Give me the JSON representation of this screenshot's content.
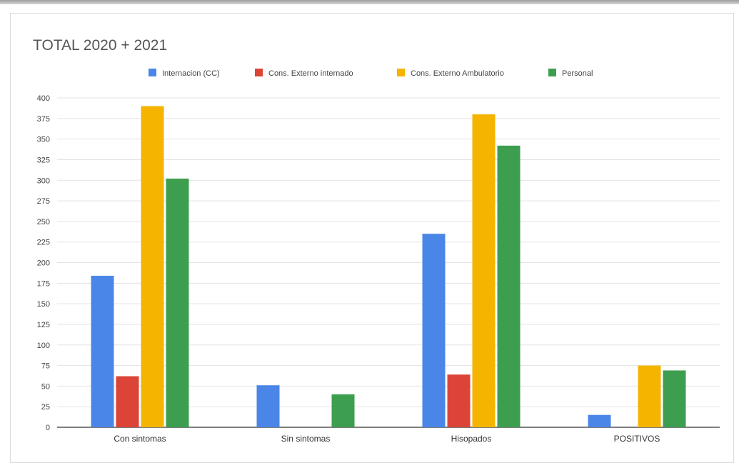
{
  "chart_data": {
    "type": "bar",
    "title": "TOTAL 2020 + 2021",
    "xlabel": "",
    "ylabel": "",
    "categories": [
      "Con sintomas",
      "Sin sintomas",
      "Hisopados",
      "POSITIVOS"
    ],
    "series": [
      {
        "name": "Internacion (CC)",
        "color": "#4a86e8",
        "values": [
          184,
          51,
          235,
          15
        ]
      },
      {
        "name": "Cons. Externo internado",
        "color": "#db4437",
        "values": [
          62,
          0,
          64,
          0
        ]
      },
      {
        "name": "Cons. Externo Ambulatorio",
        "color": "#f4b400",
        "values": [
          390,
          0,
          380,
          75
        ]
      },
      {
        "name": "Personal",
        "color": "#3d9e4f",
        "values": [
          302,
          40,
          342,
          69
        ]
      }
    ],
    "ylim": [
      0,
      400
    ],
    "yticks": [
      0,
      25,
      50,
      75,
      100,
      125,
      150,
      175,
      200,
      225,
      250,
      275,
      300,
      325,
      350,
      375,
      400
    ],
    "grid": true,
    "legend_position": "top"
  }
}
